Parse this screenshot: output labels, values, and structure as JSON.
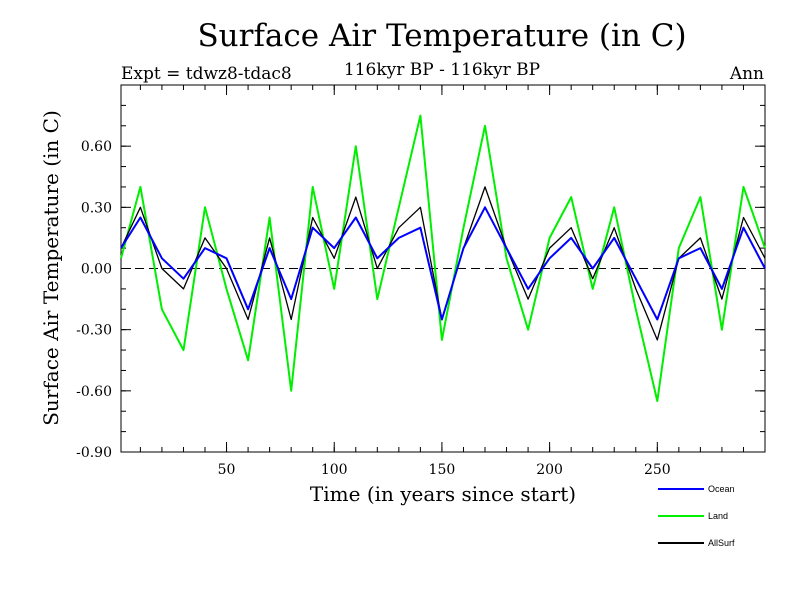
{
  "header": {
    "title": "Surface Air Temperature (in C)",
    "experiment": "Expt = tdwz8-tdac8",
    "period": "116kyr BP - 116kyr BP",
    "season": "Ann"
  },
  "chart_data": {
    "type": "line",
    "title": "Surface Air Temperature (in C)",
    "xlabel": "Time (in years since start)",
    "ylabel": "Surface Air Temperature (in C)",
    "xlim": [
      1,
      300
    ],
    "ylim": [
      -0.9,
      0.9
    ],
    "x_ticks": [
      50,
      100,
      150,
      200,
      250
    ],
    "x_tick_labels": [
      "50",
      "100",
      "150",
      "200",
      "250"
    ],
    "y_ticks": [
      0.6,
      0.3,
      0.0,
      -0.3,
      -0.6,
      -0.9
    ],
    "y_tick_labels": [
      "0.60",
      "0.30",
      "0.00",
      "-0.30",
      "-0.60",
      "-0.90"
    ],
    "zero_line": "dashed",
    "grid": false,
    "legend_position": "bottom-right",
    "x": [
      1,
      10,
      20,
      30,
      40,
      50,
      60,
      70,
      80,
      90,
      100,
      110,
      120,
      130,
      140,
      150,
      160,
      170,
      180,
      190,
      200,
      210,
      220,
      230,
      240,
      250,
      260,
      270,
      280,
      290,
      300
    ],
    "series": [
      {
        "name": "Ocean",
        "color": "#0000ff",
        "values": [
          0.1,
          0.25,
          0.05,
          -0.05,
          0.1,
          0.05,
          -0.2,
          0.1,
          -0.15,
          0.2,
          0.1,
          0.25,
          0.05,
          0.15,
          0.2,
          -0.25,
          0.1,
          0.3,
          0.1,
          -0.1,
          0.05,
          0.15,
          0.0,
          0.15,
          -0.05,
          -0.25,
          0.05,
          0.1,
          -0.1,
          0.2,
          0.0
        ]
      },
      {
        "name": "Land",
        "color": "#00ee00",
        "values": [
          0.05,
          0.4,
          -0.2,
          -0.4,
          0.3,
          -0.1,
          -0.45,
          0.25,
          -0.6,
          0.4,
          -0.1,
          0.6,
          -0.15,
          0.3,
          0.75,
          -0.35,
          0.2,
          0.7,
          0.05,
          -0.3,
          0.15,
          0.35,
          -0.1,
          0.3,
          -0.2,
          -0.65,
          0.1,
          0.35,
          -0.3,
          0.4,
          0.1
        ]
      },
      {
        "name": "AllSurf",
        "color": "#000000",
        "values": [
          0.1,
          0.3,
          0.0,
          -0.1,
          0.15,
          0.0,
          -0.25,
          0.15,
          -0.25,
          0.25,
          0.05,
          0.35,
          0.0,
          0.2,
          0.3,
          -0.25,
          0.1,
          0.4,
          0.1,
          -0.15,
          0.1,
          0.2,
          -0.05,
          0.2,
          -0.1,
          -0.35,
          0.05,
          0.15,
          -0.15,
          0.25,
          0.05
        ]
      }
    ]
  }
}
